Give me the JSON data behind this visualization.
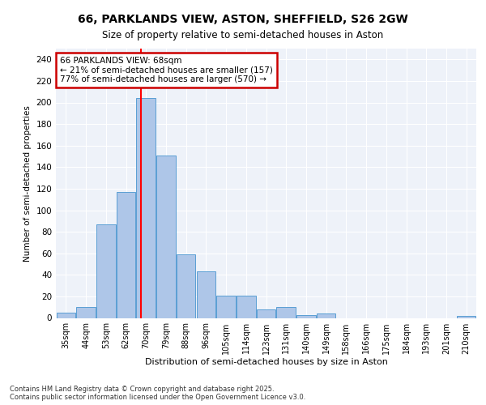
{
  "title_line1": "66, PARKLANDS VIEW, ASTON, SHEFFIELD, S26 2GW",
  "title_line2": "Size of property relative to semi-detached houses in Aston",
  "xlabel": "Distribution of semi-detached houses by size in Aston",
  "ylabel": "Number of semi-detached properties",
  "footer_line1": "Contains HM Land Registry data © Crown copyright and database right 2025.",
  "footer_line2": "Contains public sector information licensed under the Open Government Licence v3.0.",
  "bar_labels": [
    "35sqm",
    "44sqm",
    "53sqm",
    "62sqm",
    "70sqm",
    "79sqm",
    "88sqm",
    "96sqm",
    "105sqm",
    "114sqm",
    "123sqm",
    "131sqm",
    "140sqm",
    "149sqm",
    "158sqm",
    "166sqm",
    "175sqm",
    "184sqm",
    "193sqm",
    "201sqm",
    "210sqm"
  ],
  "bar_values": [
    5,
    10,
    87,
    117,
    204,
    151,
    59,
    43,
    21,
    21,
    8,
    10,
    3,
    4,
    0,
    0,
    0,
    0,
    0,
    0,
    2
  ],
  "bar_color": "#aec6e8",
  "bar_edge_color": "#5a9fd4",
  "background_color": "#eef2f9",
  "grid_color": "#ffffff",
  "annotation_text": "66 PARKLANDS VIEW: 68sqm\n← 21% of semi-detached houses are smaller (157)\n77% of semi-detached houses are larger (570) →",
  "annotation_box_color": "#ffffff",
  "annotation_box_edge_color": "#cc0000",
  "ylim": [
    0,
    250
  ],
  "yticks": [
    0,
    20,
    40,
    60,
    80,
    100,
    120,
    140,
    160,
    180,
    200,
    220,
    240
  ]
}
